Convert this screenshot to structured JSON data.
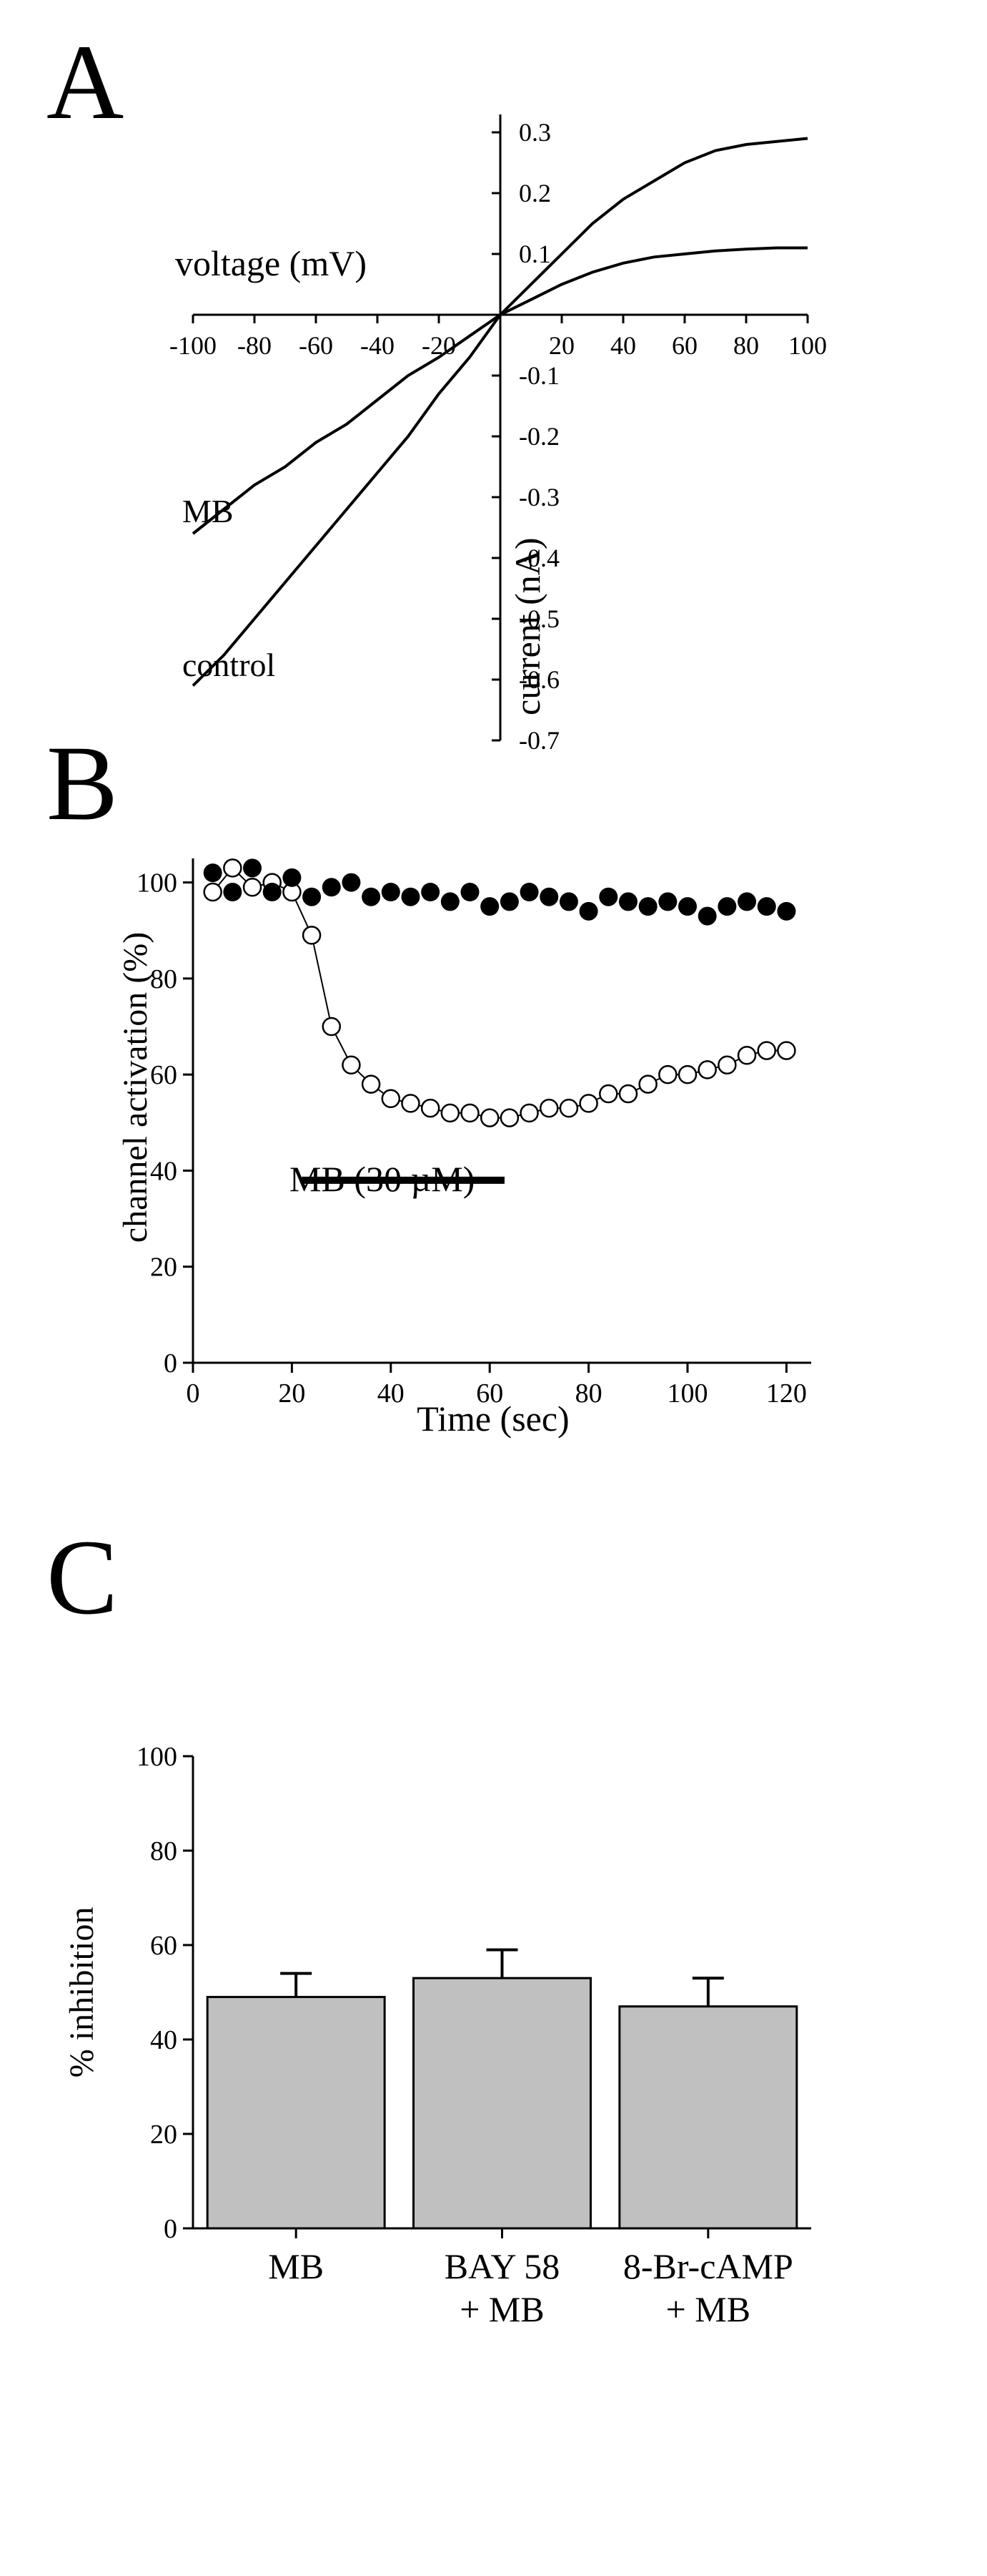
{
  "colors": {
    "ink": "#000000",
    "bar_fill": "#c0c0c0",
    "background": "#ffffff",
    "open_marker_fill": "#ffffff"
  },
  "chart_data": [
    {
      "panel_label": "A",
      "type": "line",
      "title": "",
      "xlabel": "voltage (mV)",
      "ylabel": "current (nA)",
      "xlim": [
        -100,
        100
      ],
      "ylim": [
        -0.7,
        0.3
      ],
      "x_ticks": [
        -100,
        -80,
        -60,
        -40,
        -20,
        20,
        40,
        60,
        80,
        100
      ],
      "x_tick_labels": [
        "-100",
        "-80",
        "-60",
        "-40",
        "-20",
        "20",
        "40",
        "60",
        "80",
        "100"
      ],
      "y_ticks": [
        0.3,
        0.2,
        0.1,
        -0.1,
        -0.2,
        -0.3,
        -0.4,
        -0.5,
        -0.6,
        -0.7
      ],
      "y_tick_labels": [
        "0.3",
        "0.2",
        "0.1",
        "-0.1",
        "-0.2",
        "-0.3",
        "-0.4",
        "-0.5",
        "-0.6",
        "-0.7"
      ],
      "series": [
        {
          "name": "control",
          "x": [
            -100,
            -90,
            -80,
            -70,
            -60,
            -50,
            -40,
            -30,
            -20,
            -10,
            0,
            10,
            20,
            30,
            40,
            50,
            60,
            70,
            80,
            90,
            100
          ],
          "values": [
            -0.61,
            -0.56,
            -0.5,
            -0.44,
            -0.38,
            -0.32,
            -0.26,
            -0.2,
            -0.13,
            -0.07,
            0,
            0.05,
            0.1,
            0.15,
            0.19,
            0.22,
            0.25,
            0.27,
            0.28,
            0.285,
            0.29
          ]
        },
        {
          "name": "MB",
          "x": [
            -100,
            -90,
            -80,
            -70,
            -60,
            -50,
            -40,
            -30,
            -20,
            -10,
            0,
            10,
            20,
            30,
            40,
            50,
            60,
            70,
            80,
            90,
            100
          ],
          "values": [
            -0.36,
            -0.32,
            -0.28,
            -0.25,
            -0.21,
            -0.18,
            -0.14,
            -0.1,
            -0.07,
            -0.035,
            0,
            0.025,
            0.05,
            0.07,
            0.085,
            0.095,
            0.1,
            0.105,
            0.108,
            0.11,
            0.11
          ]
        }
      ]
    },
    {
      "panel_label": "B",
      "type": "scatter",
      "title": "",
      "xlabel": "Time (sec)",
      "ylabel": "channel activation (%)",
      "xlim": [
        0,
        125
      ],
      "ylim": [
        0,
        105
      ],
      "x_ticks": [
        0,
        20,
        40,
        60,
        80,
        100,
        120
      ],
      "x_tick_labels": [
        "0",
        "20",
        "40",
        "60",
        "80",
        "100",
        "120"
      ],
      "y_ticks": [
        0,
        20,
        40,
        60,
        80,
        100
      ],
      "y_tick_labels": [
        "0",
        "20",
        "40",
        "60",
        "80",
        "100"
      ],
      "annotation": "MB (30 µM)",
      "annotation_bar_x": [
        22,
        63
      ],
      "annotation_bar_y": 38,
      "series": [
        {
          "name": "filled",
          "x": [
            4,
            8,
            12,
            16,
            20,
            24,
            28,
            32,
            36,
            40,
            44,
            48,
            52,
            56,
            60,
            64,
            68,
            72,
            76,
            80,
            84,
            88,
            92,
            96,
            100,
            104,
            108,
            112,
            116,
            120
          ],
          "values": [
            102,
            98,
            103,
            98,
            101,
            97,
            99,
            100,
            97,
            98,
            97,
            98,
            96,
            98,
            95,
            96,
            98,
            97,
            96,
            94,
            97,
            96,
            95,
            96,
            95,
            93,
            95,
            96,
            95,
            94
          ]
        },
        {
          "name": "open",
          "x": [
            4,
            8,
            12,
            16,
            20,
            24,
            28,
            32,
            36,
            40,
            44,
            48,
            52,
            56,
            60,
            64,
            68,
            72,
            76,
            80,
            84,
            88,
            92,
            96,
            100,
            104,
            108,
            112,
            116,
            120
          ],
          "values": [
            98,
            103,
            99,
            100,
            98,
            89,
            70,
            62,
            58,
            55,
            54,
            53,
            52,
            52,
            51,
            51,
            52,
            53,
            53,
            54,
            56,
            56,
            58,
            60,
            60,
            61,
            62,
            64,
            65,
            65
          ]
        }
      ]
    },
    {
      "panel_label": "C",
      "type": "bar",
      "title": "",
      "xlabel": "",
      "ylabel": "% inhibition",
      "ylim": [
        0,
        100
      ],
      "y_ticks": [
        0,
        20,
        40,
        60,
        80,
        100
      ],
      "y_tick_labels": [
        "0",
        "20",
        "40",
        "60",
        "80",
        "100"
      ],
      "categories": [
        [
          "MB"
        ],
        [
          "BAY 58",
          "+ MB"
        ],
        [
          "8-Br-cAMP",
          "+ MB"
        ]
      ],
      "values": [
        49,
        53,
        47
      ],
      "errors": [
        5,
        6,
        6
      ]
    }
  ]
}
